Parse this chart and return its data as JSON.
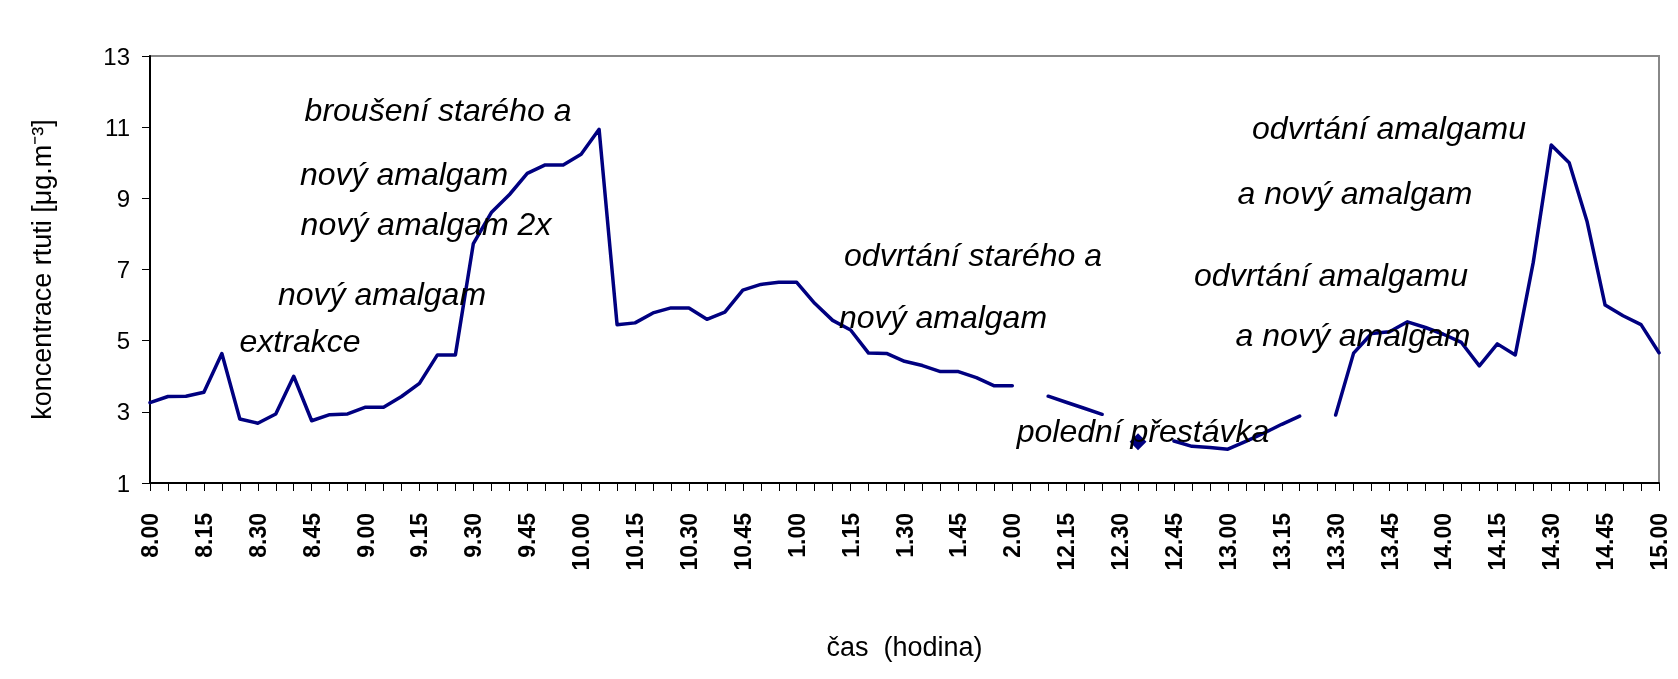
{
  "chart_data": {
    "type": "line",
    "xlabel": "čas  (hodina)",
    "ylabel": "koncentrace rtuti [μg.m⁻³]",
    "categories": [
      "8.00",
      null,
      null,
      "8.15",
      null,
      null,
      "8.30",
      null,
      null,
      "8.45",
      null,
      null,
      "9.00",
      null,
      null,
      "9.15",
      null,
      null,
      "9.30",
      null,
      null,
      "9.45",
      null,
      null,
      "10.00",
      null,
      null,
      "10.15",
      null,
      null,
      "10.30",
      null,
      null,
      "10.45",
      null,
      null,
      "1.00",
      null,
      null,
      "1.15",
      null,
      null,
      "1.30",
      null,
      null,
      "1.45",
      null,
      null,
      "2.00",
      null,
      null,
      "12.15",
      null,
      null,
      "12.30",
      null,
      null,
      "12.45",
      null,
      null,
      "13.00",
      null,
      null,
      "13.15",
      null,
      null,
      "13.30",
      null,
      null,
      "13.45",
      null,
      null,
      "14.00",
      null,
      null,
      "14.15",
      null,
      null,
      "14.30",
      null,
      null,
      "14.45",
      null,
      null,
      "15.00"
    ],
    "ylim": [
      1,
      13
    ],
    "yticks": [
      1,
      3,
      5,
      7,
      9,
      11,
      13
    ],
    "grid": false,
    "line_style": "solid",
    "series": [
      {
        "color": "#000080",
        "values": [
          3.26,
          3.43,
          3.44,
          3.55,
          4.64,
          2.8,
          2.68,
          2.94,
          4.0,
          2.75,
          2.92,
          2.94,
          3.13,
          3.13,
          3.43,
          3.8,
          4.6,
          4.6,
          7.73,
          8.6,
          9.1,
          9.7,
          9.94,
          9.94,
          10.24,
          10.94,
          5.45,
          5.5,
          5.78,
          5.92,
          5.92,
          5.6,
          5.8,
          6.42,
          6.58,
          6.64,
          6.64,
          6.05,
          5.57,
          5.3,
          4.65,
          4.64,
          4.42,
          4.3,
          4.13,
          4.13,
          3.96,
          3.73,
          3.73,
          null,
          3.44,
          3.27,
          3.1,
          2.93,
          null,
          2.16,
          null,
          2.18,
          2.03,
          2.0,
          1.95,
          2.17,
          2.4,
          2.65,
          2.88,
          null,
          2.91,
          4.65,
          5.2,
          5.25,
          5.53,
          5.37,
          5.18,
          4.95,
          4.29,
          4.91,
          4.6,
          7.2,
          10.5,
          10.0,
          8.34,
          6.0,
          5.7,
          5.45,
          4.66
        ]
      }
    ],
    "annotations": [
      "extrakce",
      "nový amalgam",
      "nový amalgam 2x",
      "broušení starého a",
      "nový amalgam",
      "odvrtání starého a",
      "nový amalgam",
      "polední přestávka",
      "odvrtání amalgamu",
      "a nový amalgam",
      "odvrtání amalgamu",
      "a nový amalgam"
    ]
  }
}
